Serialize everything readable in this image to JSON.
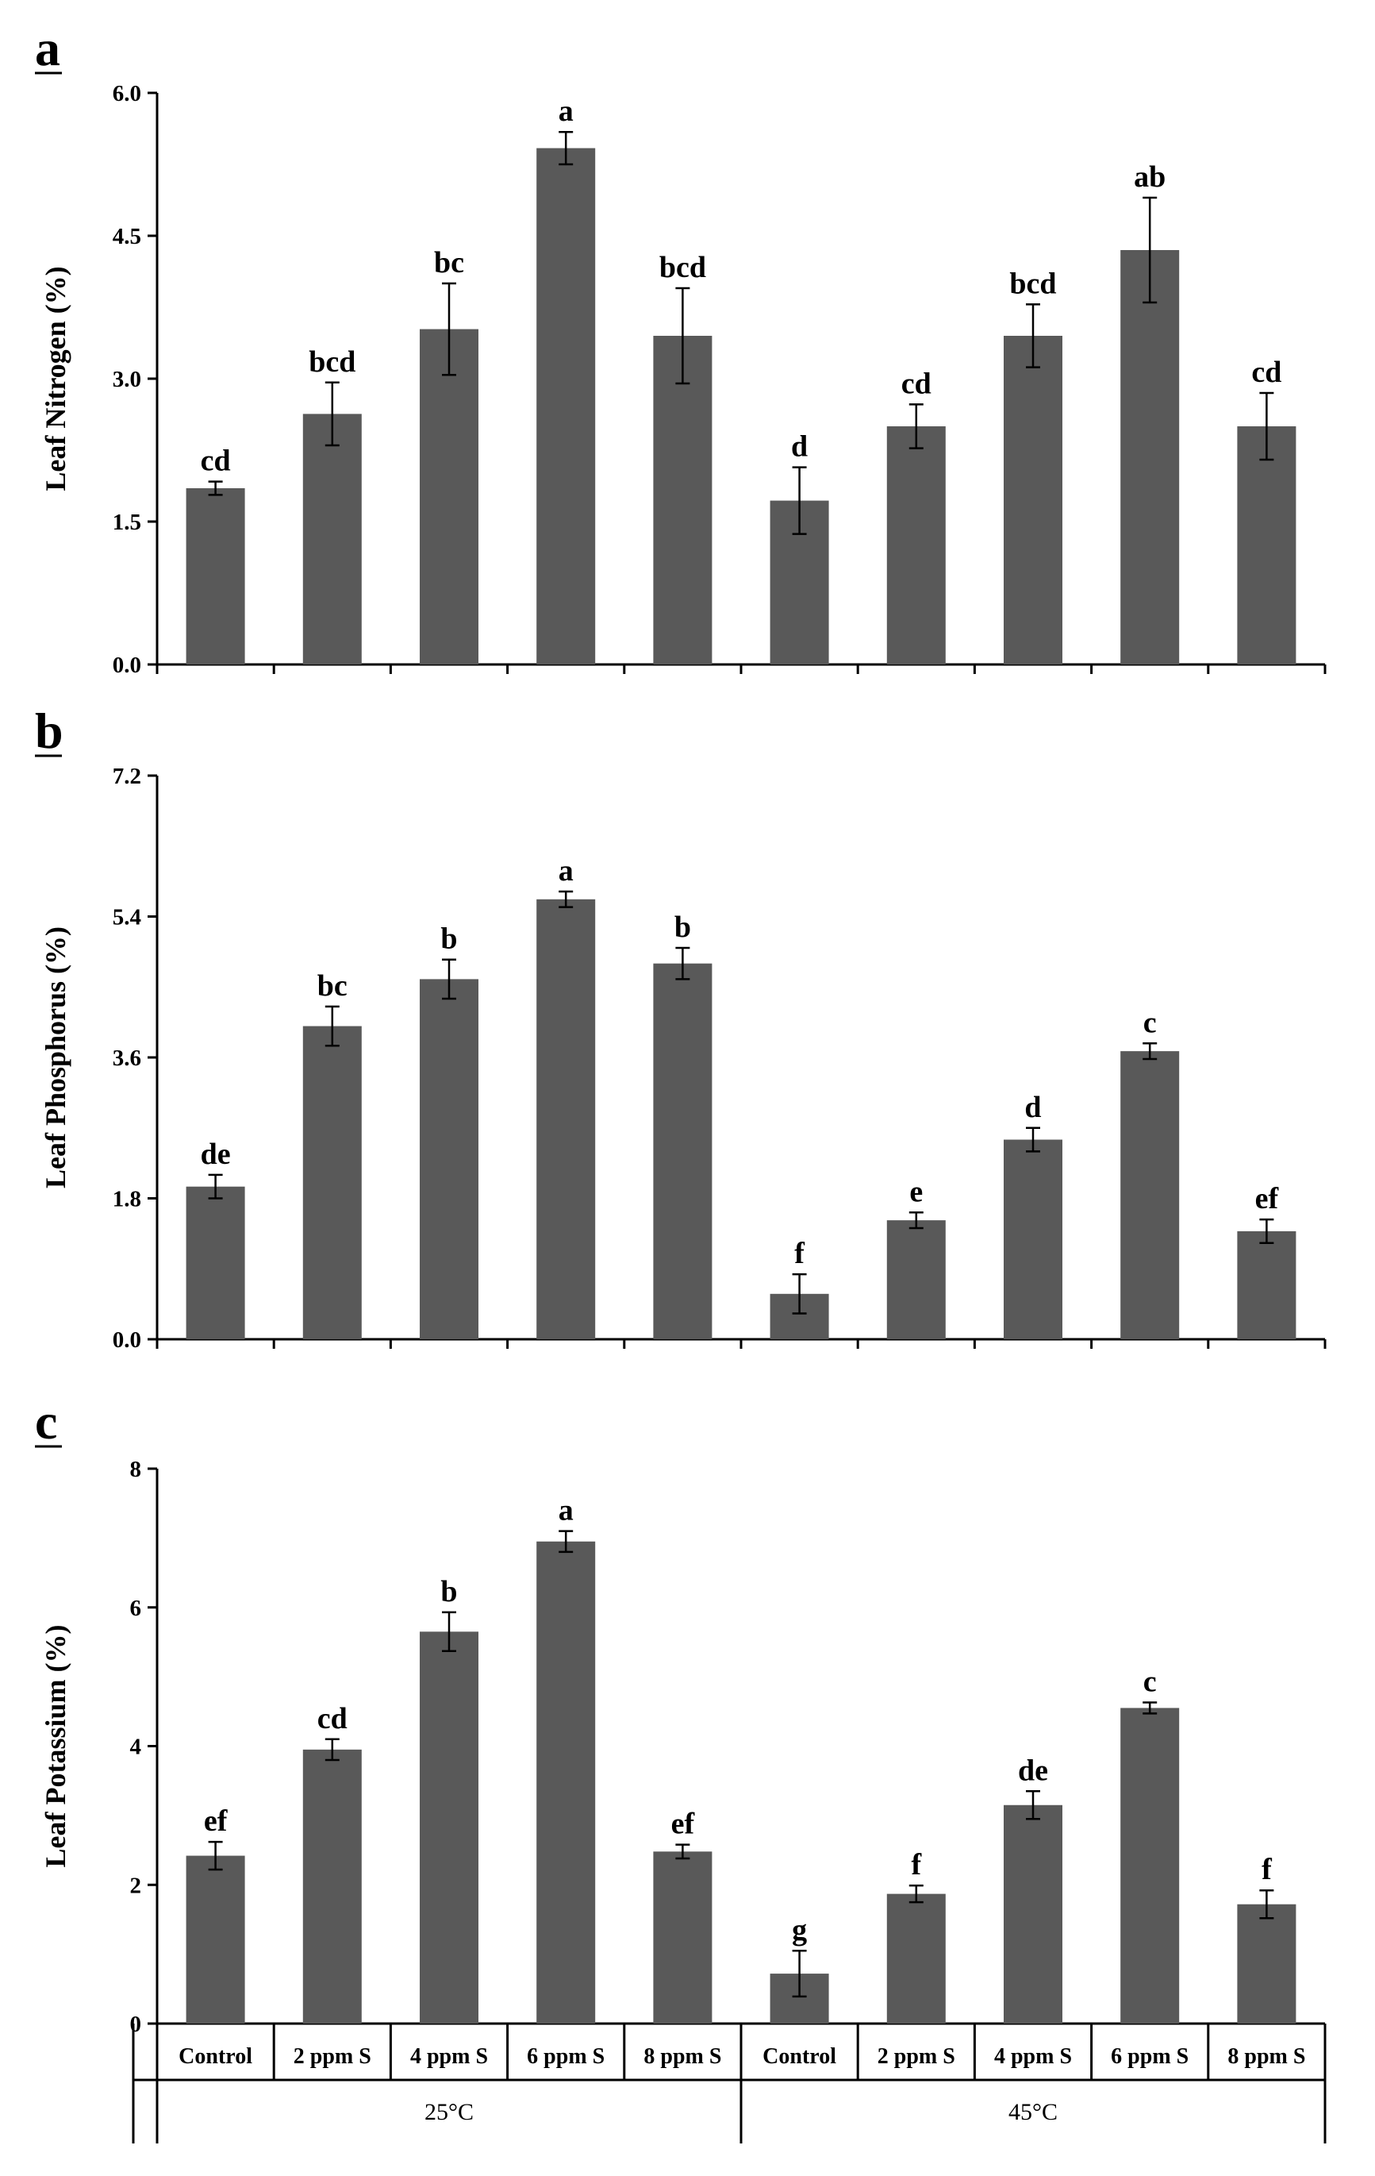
{
  "chart_data": [
    {
      "type": "bar",
      "panel": "a",
      "title": "",
      "xlabel": "",
      "ylabel": "Leaf Nitrogen (%)",
      "ylim": [
        0,
        6.0
      ],
      "yticks": [
        "0.0",
        "1.5",
        "3.0",
        "4.5",
        "6.0"
      ],
      "categories": [
        "Control",
        "2 ppm S",
        "4 ppm S",
        "6 ppm S",
        "8 ppm S",
        "Control",
        "2 ppm S",
        "4 ppm S",
        "6 ppm S",
        "8 ppm S"
      ],
      "groups": [
        "25°C",
        "25°C",
        "25°C",
        "25°C",
        "25°C",
        "45°C",
        "45°C",
        "45°C",
        "45°C",
        "45°C"
      ],
      "values": [
        1.85,
        2.63,
        3.52,
        5.42,
        3.45,
        1.72,
        2.5,
        3.45,
        4.35,
        2.5
      ],
      "errors": [
        0.07,
        0.33,
        0.48,
        0.17,
        0.5,
        0.35,
        0.23,
        0.33,
        0.55,
        0.35
      ],
      "letters": [
        "cd",
        "bcd",
        "bc",
        "a",
        "bcd",
        "d",
        "cd",
        "bcd",
        "ab",
        "cd"
      ]
    },
    {
      "type": "bar",
      "panel": "b",
      "title": "",
      "xlabel": "",
      "ylabel": "Leaf Phosphorus (%)",
      "ylim": [
        0,
        7.2
      ],
      "yticks": [
        "0.0",
        "1.8",
        "3.6",
        "5.4",
        "7.2"
      ],
      "categories": [
        "Control",
        "2 ppm S",
        "4 ppm S",
        "6 ppm S",
        "8 ppm S",
        "Control",
        "2 ppm S",
        "4 ppm S",
        "6 ppm S",
        "8 ppm S"
      ],
      "groups": [
        "25°C",
        "25°C",
        "25°C",
        "25°C",
        "25°C",
        "45°C",
        "45°C",
        "45°C",
        "45°C",
        "45°C"
      ],
      "values": [
        1.95,
        4.0,
        4.6,
        5.62,
        4.8,
        0.58,
        1.52,
        2.55,
        3.68,
        1.38
      ],
      "errors": [
        0.15,
        0.25,
        0.25,
        0.1,
        0.2,
        0.25,
        0.1,
        0.15,
        0.1,
        0.15
      ],
      "letters": [
        "de",
        "bc",
        "b",
        "a",
        "b",
        "f",
        "e",
        "d",
        "c",
        "ef"
      ]
    },
    {
      "type": "bar",
      "panel": "c",
      "title": "",
      "xlabel": "",
      "ylabel": "Leaf Potassium (%)",
      "ylim": [
        0,
        8
      ],
      "yticks": [
        "0",
        "2",
        "4",
        "6",
        "8"
      ],
      "categories": [
        "Control",
        "2 ppm S",
        "4 ppm S",
        "6 ppm S",
        "8 ppm S",
        "Control",
        "2 ppm S",
        "4 ppm S",
        "6 ppm S",
        "8 ppm S"
      ],
      "groups": [
        "25°C",
        "25°C",
        "25°C",
        "25°C",
        "25°C",
        "45°C",
        "45°C",
        "45°C",
        "45°C",
        "45°C"
      ],
      "values": [
        2.42,
        3.95,
        5.65,
        6.95,
        2.48,
        0.72,
        1.87,
        3.15,
        4.55,
        1.72
      ],
      "errors": [
        0.2,
        0.15,
        0.28,
        0.15,
        0.1,
        0.33,
        0.12,
        0.2,
        0.08,
        0.2
      ],
      "letters": [
        "ef",
        "cd",
        "b",
        "a",
        "ef",
        "g",
        "f",
        "de",
        "c",
        "f"
      ],
      "group_labels": [
        "25°C",
        "45°C"
      ]
    }
  ]
}
